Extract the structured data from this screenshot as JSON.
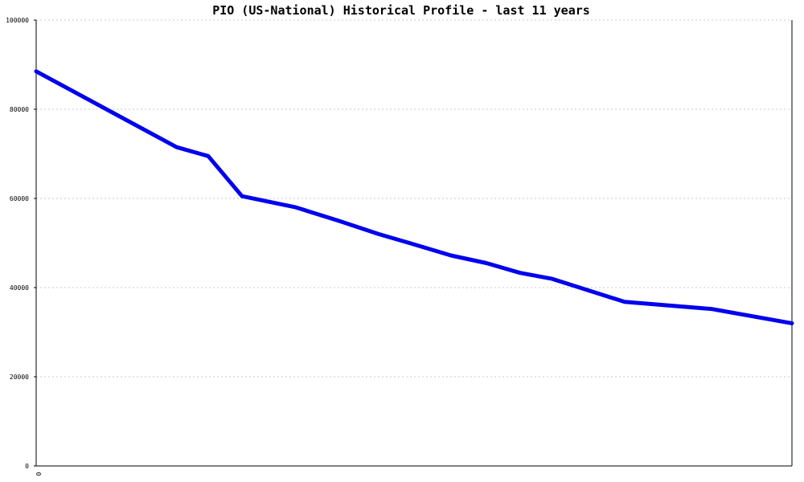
{
  "chart_data": {
    "type": "line",
    "title": "PIO (US-National) Historical Profile - last 11 years",
    "xlabel": "",
    "ylabel": "",
    "ylim": [
      0,
      100000
    ],
    "y_ticks": [
      "0",
      "20000",
      "40000",
      "60000",
      "80000",
      "100000"
    ],
    "x_ticks": [
      "0"
    ],
    "grid": true,
    "colors": {
      "series": "#0000ee",
      "grid": "#c8c8c8",
      "axis": "#000000"
    },
    "x": [
      0,
      1,
      2,
      3,
      4,
      5,
      6,
      7,
      8,
      9,
      10,
      11,
      12,
      13,
      14
    ],
    "series": [
      {
        "values": [
          88500,
          71500,
          69500,
          60500,
          58000,
          55000,
          52000,
          49800,
          47200,
          45500,
          43300,
          42000,
          36800,
          35200,
          32000
        ]
      }
    ],
    "x_positions": [
      0,
      0.1858,
      0.2277,
      0.2723,
      0.3436,
      0.4,
      0.4532,
      0.4979,
      0.5489,
      0.5957,
      0.6404,
      0.6819,
      0.7787,
      0.8936,
      1.0
    ]
  }
}
